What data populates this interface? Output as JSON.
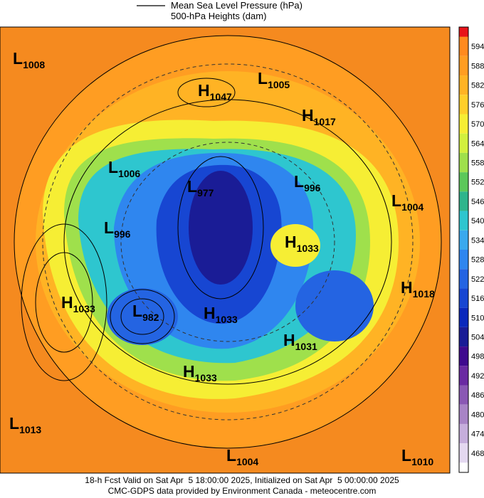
{
  "header": {
    "line_legend": "Mean Sea Level Pressure (hPa)",
    "fill_legend": "500-hPa Heights (dam)"
  },
  "colorbar": {
    "labels": [
      {
        "label": "594",
        "color": "#ff8a1e"
      },
      {
        "label": "588",
        "color": "#ff9d22"
      },
      {
        "label": "582",
        "color": "#ffb324"
      },
      {
        "label": "576",
        "color": "#ffcf2a"
      },
      {
        "label": "570",
        "color": "#f6ee34"
      },
      {
        "label": "564",
        "color": "#d2f03e"
      },
      {
        "label": "558",
        "color": "#9fe04c"
      },
      {
        "label": "552",
        "color": "#5cc85a"
      },
      {
        "label": "546",
        "color": "#2fb58c"
      },
      {
        "label": "540",
        "color": "#2ec6cf"
      },
      {
        "label": "534",
        "color": "#3aa9ee"
      },
      {
        "label": "528",
        "color": "#2f86ef"
      },
      {
        "label": "522",
        "color": "#2464e2"
      },
      {
        "label": "516",
        "color": "#1746d2"
      },
      {
        "label": "510",
        "color": "#0a28bc"
      },
      {
        "label": "504",
        "color": "#1a1c96"
      },
      {
        "label": "498",
        "color": "#3f0a8e"
      },
      {
        "label": "492",
        "color": "#6a2aa2"
      },
      {
        "label": "486",
        "color": "#8a58b4"
      },
      {
        "label": "480",
        "color": "#a884c6"
      },
      {
        "label": "474",
        "color": "#c6aedc"
      },
      {
        "label": "468",
        "color": "#e4d8f0"
      }
    ],
    "top_color": "#e8141a",
    "bottom_color": "#ffffff"
  },
  "systems": [
    {
      "letter": "L",
      "value": "1008"
    },
    {
      "letter": "H",
      "value": "1047"
    },
    {
      "letter": "L",
      "value": "1005"
    },
    {
      "letter": "H",
      "value": "1017"
    },
    {
      "letter": "L",
      "value": "1006"
    },
    {
      "letter": "L",
      "value": "977"
    },
    {
      "letter": "L",
      "value": "996"
    },
    {
      "letter": "L",
      "value": "1004"
    },
    {
      "letter": "L",
      "value": "996"
    },
    {
      "letter": "H",
      "value": "1033"
    },
    {
      "letter": "H",
      "value": "1033"
    },
    {
      "letter": "L",
      "value": "982"
    },
    {
      "letter": "H",
      "value": "1033"
    },
    {
      "letter": "H",
      "value": "1018"
    },
    {
      "letter": "H",
      "value": "1031"
    },
    {
      "letter": "H",
      "value": "1033"
    },
    {
      "letter": "L",
      "value": "1013"
    },
    {
      "letter": "L",
      "value": "1004"
    },
    {
      "letter": "L",
      "value": "1010"
    }
  ],
  "footer": {
    "line1": "18-h Fcst Valid on Sat Apr  5 18:00:00 2025, Initialized on Sat Apr  5 00:00:00 2025",
    "line2": "CMC-GDPS data provided by Environment Canada - meteocentre.com"
  }
}
